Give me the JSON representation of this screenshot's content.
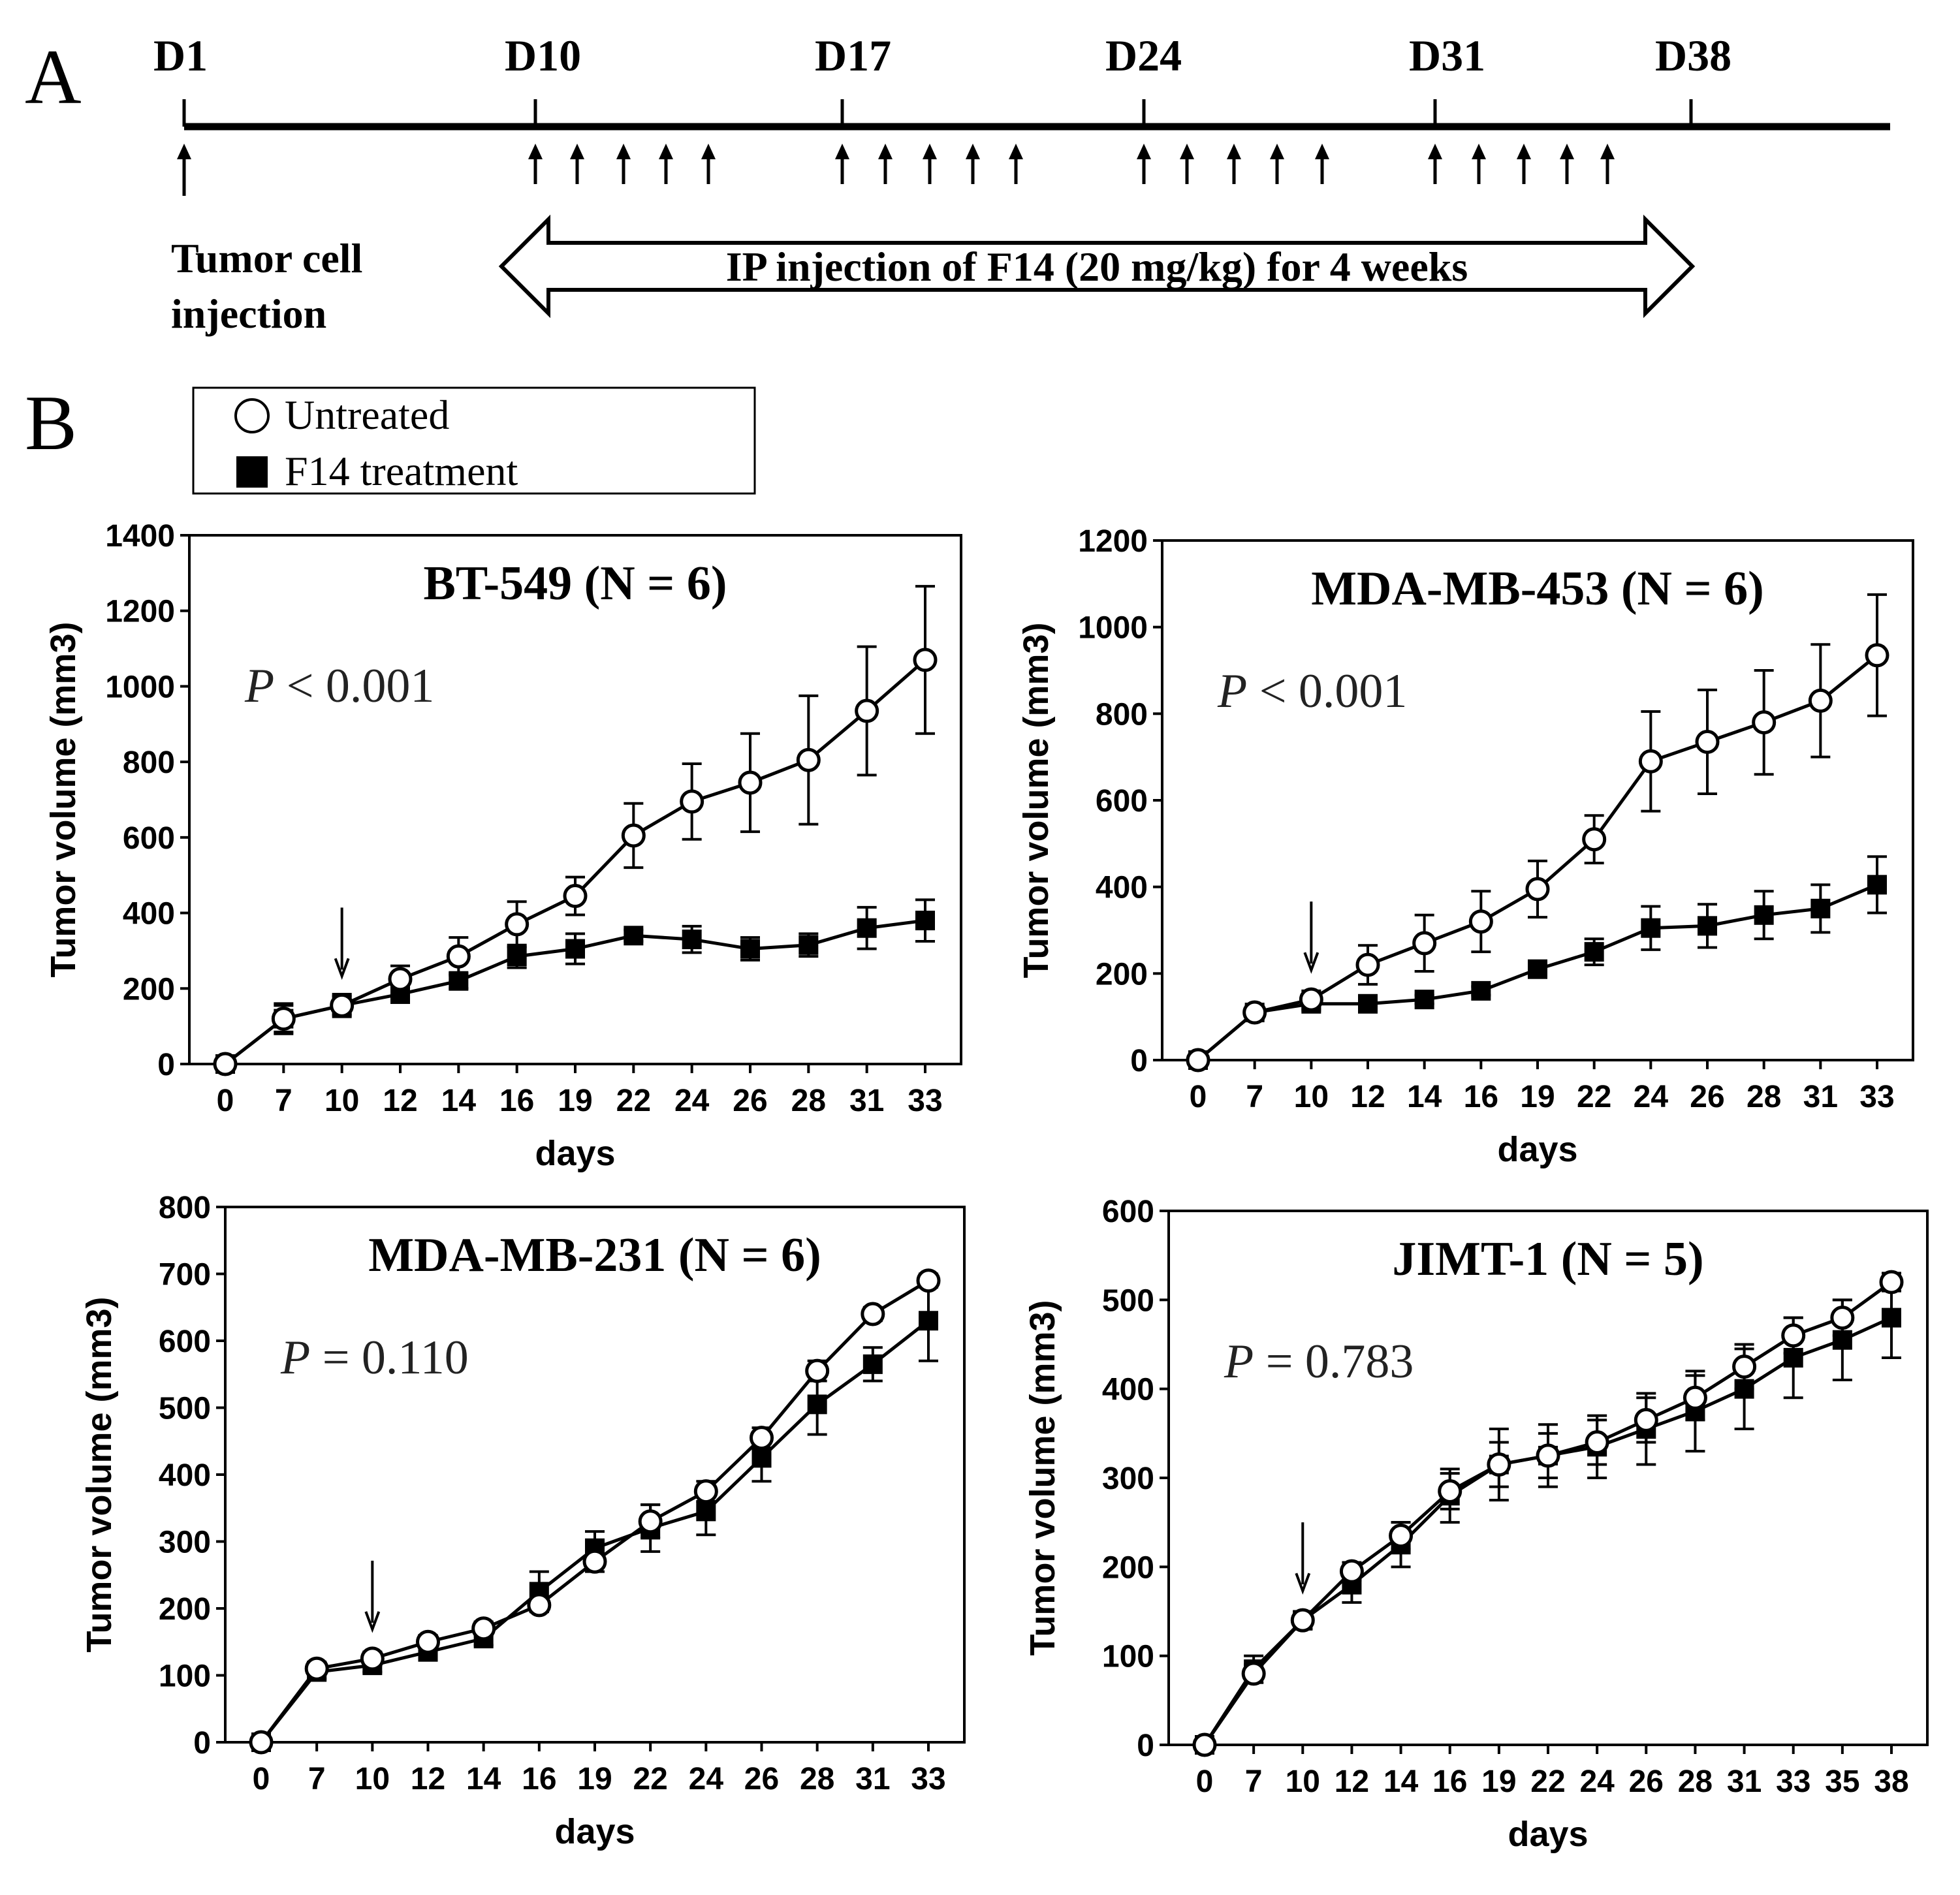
{
  "panel_a": {
    "letter": "A",
    "timeline_days": [
      "D1",
      "D10",
      "D17",
      "D24",
      "D31",
      "D38"
    ],
    "tumor_label_line1": "Tumor cell",
    "tumor_label_line2": "injection",
    "injection_label": "IP injection of F14 (20 mg/kg) for 4 weeks"
  },
  "panel_b": {
    "letter": "B",
    "legend": {
      "untreated": "Untreated",
      "treated": "F14 treatment"
    }
  },
  "chart_data": [
    {
      "type": "line",
      "title": "BT-549 (N = 6)",
      "p_symbol": "P",
      "p_text": " < 0.001",
      "xlabel": "days",
      "ylabel": "Tumor volume (mm3)",
      "ylim": [
        0,
        1400
      ],
      "yticks": [
        0,
        200,
        400,
        600,
        800,
        1000,
        1200,
        1400
      ],
      "categories": [
        "0",
        "7",
        "10",
        "12",
        "14",
        "16",
        "19",
        "22",
        "24",
        "26",
        "28",
        "31",
        "33"
      ],
      "arrow_at": "10",
      "series": [
        {
          "name": "Untreated",
          "marker": "open-circle",
          "values": [
            0,
            120,
            155,
            225,
            285,
            370,
            445,
            605,
            695,
            745,
            805,
            935,
            1070
          ],
          "errors": [
            0,
            40,
            30,
            35,
            50,
            60,
            50,
            85,
            100,
            130,
            170,
            170,
            195
          ]
        },
        {
          "name": "F14 treatment",
          "marker": "filled-square",
          "values": [
            0,
            120,
            155,
            185,
            220,
            285,
            305,
            340,
            330,
            305,
            315,
            360,
            380
          ],
          "errors": [
            0,
            35,
            25,
            20,
            20,
            30,
            40,
            15,
            35,
            30,
            30,
            55,
            55
          ]
        }
      ]
    },
    {
      "type": "line",
      "title": "MDA-MB-453 (N = 6)",
      "p_symbol": "P",
      "p_text": " < 0.001",
      "xlabel": "days",
      "ylabel": "Tumor volume (mm3)",
      "ylim": [
        0,
        1200
      ],
      "yticks": [
        0,
        200,
        400,
        600,
        800,
        1000,
        1200
      ],
      "categories": [
        "0",
        "7",
        "10",
        "12",
        "14",
        "16",
        "19",
        "22",
        "24",
        "26",
        "28",
        "31",
        "33"
      ],
      "arrow_at": "10",
      "series": [
        {
          "name": "Untreated",
          "marker": "open-circle",
          "values": [
            0,
            110,
            140,
            220,
            270,
            320,
            395,
            510,
            690,
            735,
            780,
            830,
            935
          ],
          "errors": [
            0,
            15,
            20,
            45,
            65,
            70,
            65,
            55,
            115,
            120,
            120,
            130,
            140
          ]
        },
        {
          "name": "F14 treatment",
          "marker": "filled-square",
          "values": [
            0,
            110,
            130,
            130,
            140,
            160,
            210,
            250,
            305,
            310,
            335,
            350,
            405
          ],
          "errors": [
            0,
            15,
            15,
            10,
            10,
            10,
            10,
            30,
            50,
            50,
            55,
            55,
            65
          ]
        }
      ]
    },
    {
      "type": "line",
      "title": "MDA-MB-231 (N = 6)",
      "p_symbol": "P",
      "p_text": " = 0.110",
      "xlabel": "days",
      "ylabel": "Tumor volume (mm3)",
      "ylim": [
        0,
        800
      ],
      "yticks": [
        0,
        100,
        200,
        300,
        400,
        500,
        600,
        700,
        800
      ],
      "categories": [
        "0",
        "7",
        "10",
        "12",
        "14",
        "16",
        "19",
        "22",
        "24",
        "26",
        "28",
        "31",
        "33"
      ],
      "arrow_at": "10",
      "series": [
        {
          "name": "Untreated",
          "marker": "open-circle",
          "values": [
            0,
            110,
            125,
            150,
            170,
            205,
            270,
            330,
            375,
            455,
            555,
            640,
            690
          ],
          "errors": [
            0,
            10,
            10,
            10,
            10,
            10,
            15,
            25,
            15,
            15,
            15,
            10,
            10
          ]
        },
        {
          "name": "F14 treatment",
          "marker": "filled-square",
          "values": [
            0,
            105,
            115,
            135,
            155,
            225,
            290,
            320,
            345,
            425,
            505,
            565,
            630
          ],
          "errors": [
            0,
            10,
            10,
            10,
            10,
            30,
            25,
            35,
            35,
            35,
            45,
            25,
            60
          ]
        }
      ]
    },
    {
      "type": "line",
      "title": "JIMT-1 (N = 5)",
      "p_symbol": "P",
      "p_text": " = 0.783",
      "xlabel": "days",
      "ylabel": "Tumor volume (mm3)",
      "ylim": [
        0,
        600
      ],
      "yticks": [
        0,
        100,
        200,
        300,
        400,
        500,
        600
      ],
      "categories": [
        "0",
        "7",
        "10",
        "12",
        "14",
        "16",
        "19",
        "22",
        "24",
        "26",
        "28",
        "31",
        "33",
        "35",
        "38"
      ],
      "arrow_at": "10",
      "series": [
        {
          "name": "Untreated",
          "marker": "open-circle",
          "values": [
            0,
            80,
            140,
            195,
            235,
            285,
            315,
            325,
            340,
            365,
            390,
            425,
            460,
            480,
            520
          ],
          "errors": [
            0,
            10,
            10,
            10,
            15,
            20,
            25,
            25,
            25,
            25,
            25,
            25,
            20,
            20,
            10
          ]
        },
        {
          "name": "F14 treatment",
          "marker": "filled-square",
          "values": [
            0,
            85,
            140,
            180,
            225,
            280,
            315,
            325,
            335,
            355,
            375,
            400,
            435,
            455,
            480
          ],
          "errors": [
            0,
            15,
            10,
            20,
            25,
            30,
            40,
            35,
            35,
            40,
            45,
            45,
            45,
            45,
            45
          ]
        }
      ]
    }
  ]
}
